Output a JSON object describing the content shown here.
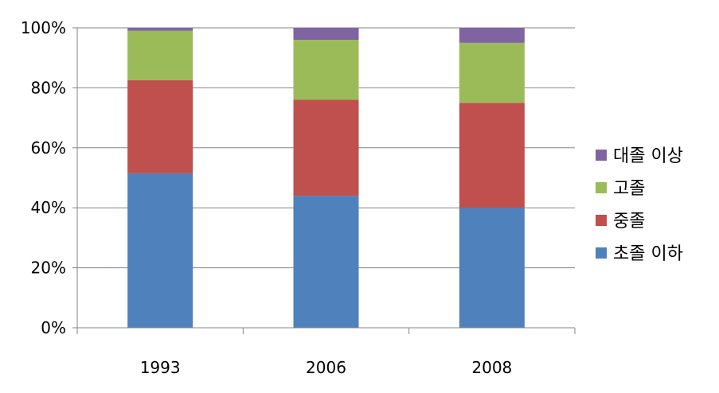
{
  "chart_data": {
    "type": "bar",
    "stacked": true,
    "percent": true,
    "categories": [
      "1993",
      "2006",
      "2008"
    ],
    "series": [
      {
        "name": "초졸 이하",
        "color": "#4f81bd",
        "values": [
          51.5,
          44,
          40
        ]
      },
      {
        "name": "중졸",
        "color": "#c0504d",
        "values": [
          31,
          32,
          35
        ]
      },
      {
        "name": "고졸",
        "color": "#9bbb59",
        "values": [
          16.5,
          20,
          20
        ]
      },
      {
        "name": "대졸 이상",
        "color": "#8064a2",
        "values": [
          1,
          4,
          5
        ]
      }
    ],
    "ylim": [
      0,
      100
    ],
    "yticks": [
      "0%",
      "20%",
      "40%",
      "60%",
      "80%",
      "100%"
    ],
    "grid": true,
    "legend_position": "right"
  }
}
